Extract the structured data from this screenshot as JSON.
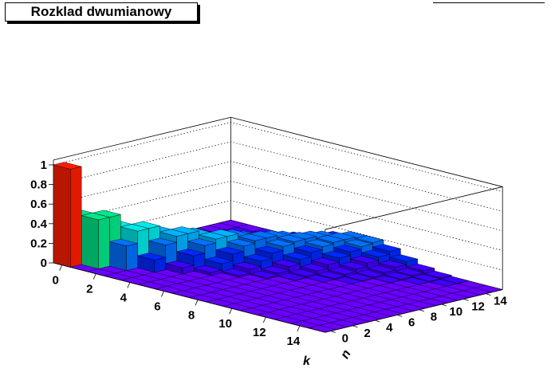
{
  "title": "Rozklad dwumianowy",
  "chart_data": {
    "type": "lego3d",
    "title": "Rozklad dwumianowy",
    "xlabel": "k",
    "ylabel": "n",
    "x_ticks": [
      "0",
      "2",
      "4",
      "6",
      "8",
      "10",
      "12",
      "14"
    ],
    "y_ticks": [
      "0",
      "2",
      "4",
      "6",
      "8",
      "10",
      "12",
      "14"
    ],
    "z_ticks": [
      "0",
      "0.2",
      "0.4",
      "0.6",
      "0.8",
      "1"
    ],
    "xlim": [
      0,
      16
    ],
    "ylim": [
      0,
      16
    ],
    "zlim": [
      0,
      1.05
    ],
    "description_values": "P(k; n, p=0.5) = C(n,k) * 0.5^n for k <= n, 0 otherwise",
    "p": 0.5,
    "n_max": 15,
    "colors": {
      "palette": [
        "#6a00ff",
        "#4000ff",
        "#0028ff",
        "#0072ff",
        "#00b4ff",
        "#00e8e8",
        "#00e88a",
        "#2ee800",
        "#9ce800",
        "#e8e800",
        "#ffb000",
        "#ff6400",
        "#ff1e00"
      ]
    }
  }
}
